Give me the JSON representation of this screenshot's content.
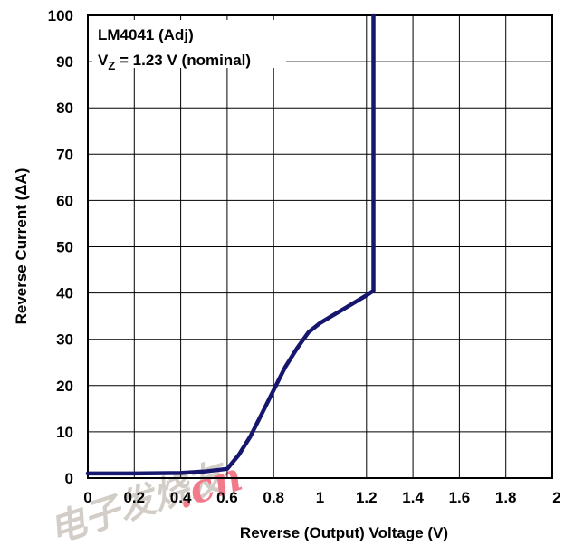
{
  "chart_data": {
    "type": "line",
    "title": "",
    "xlabel": "Reverse (Output) Voltage (V)",
    "ylabel": "Reverse Current (ΔA)",
    "xlim": [
      0,
      2
    ],
    "ylim": [
      0,
      100
    ],
    "x_ticks": [
      "0",
      "0.2",
      "0.4",
      "0.6",
      "0.8",
      "1",
      "1.2",
      "1.4",
      "1.6",
      "1.8",
      "2"
    ],
    "y_ticks": [
      "0",
      "10",
      "20",
      "30",
      "40",
      "50",
      "60",
      "70",
      "80",
      "90",
      "100"
    ],
    "grid": true,
    "annotation": {
      "line1": "LM4041 (Adj)",
      "line2_prefix": "V",
      "line2_sub": "Z",
      "line2_suffix": " = 1.23 V (nominal)"
    },
    "series": [
      {
        "x": [
          0,
          0.2,
          0.4,
          0.5,
          0.6,
          0.65,
          0.7,
          0.75,
          0.8,
          0.85,
          0.9,
          0.95,
          1.0,
          1.05,
          1.1,
          1.15,
          1.2,
          1.23,
          1.23
        ],
        "y": [
          1.0,
          1.0,
          1.1,
          1.4,
          2.0,
          5.0,
          9.0,
          14.0,
          19.0,
          24.0,
          28.0,
          31.5,
          33.5,
          35.0,
          36.5,
          38.0,
          39.5,
          40.5,
          100
        ],
        "color": "#16166e"
      }
    ],
    "watermark": {
      "text": "电子发烧友",
      "domain": ".cn",
      "color": "#e8112d"
    }
  }
}
